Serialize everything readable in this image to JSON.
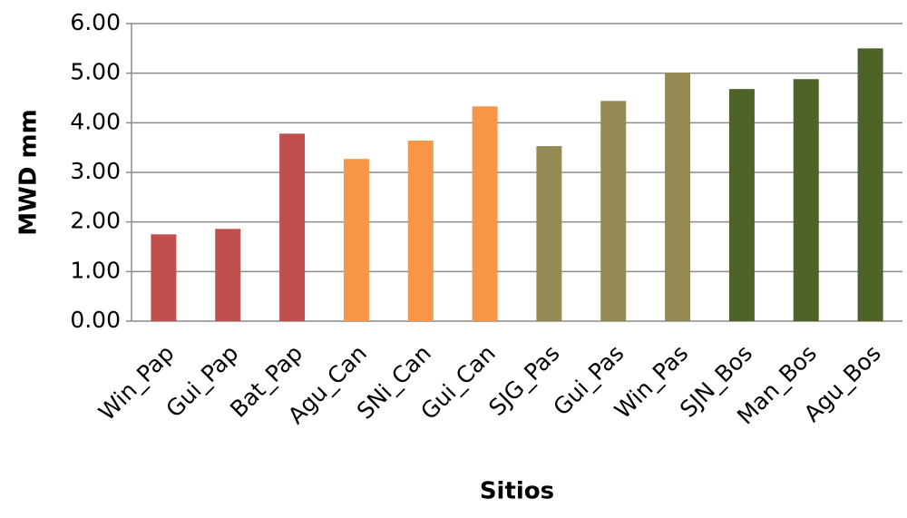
{
  "chart_data": {
    "type": "bar",
    "xlabel": "Sitios",
    "ylabel": "MWD mm",
    "categories": [
      "Win_Pap",
      "Gui_Pap",
      "Bat_Pap",
      "Agu_Can",
      "SNi_Can",
      "Gui_Can",
      "SJG_Pas",
      "Gui_Pas",
      "Win_Pas",
      "SJN_Bos",
      "Man_Bos",
      "Agu_Bos"
    ],
    "values": [
      1.75,
      1.86,
      3.78,
      3.27,
      3.64,
      4.33,
      3.53,
      4.44,
      5.01,
      4.68,
      4.88,
      5.5
    ],
    "colors": [
      "#c0504d",
      "#c0504d",
      "#c0504d",
      "#f79646",
      "#f79646",
      "#f79646",
      "#948a54",
      "#948a54",
      "#948a54",
      "#4f6228",
      "#4f6228",
      "#4f6228"
    ],
    "ylim": [
      0,
      6
    ],
    "yticks": [
      {
        "value": 0,
        "label": "0.00"
      },
      {
        "value": 1,
        "label": "1.00"
      },
      {
        "value": 2,
        "label": "2.00"
      },
      {
        "value": 3,
        "label": "3.00"
      },
      {
        "value": 4,
        "label": "4.00"
      },
      {
        "value": 5,
        "label": "5.00"
      },
      {
        "value": 6,
        "label": "6.00"
      }
    ],
    "grid": true
  }
}
